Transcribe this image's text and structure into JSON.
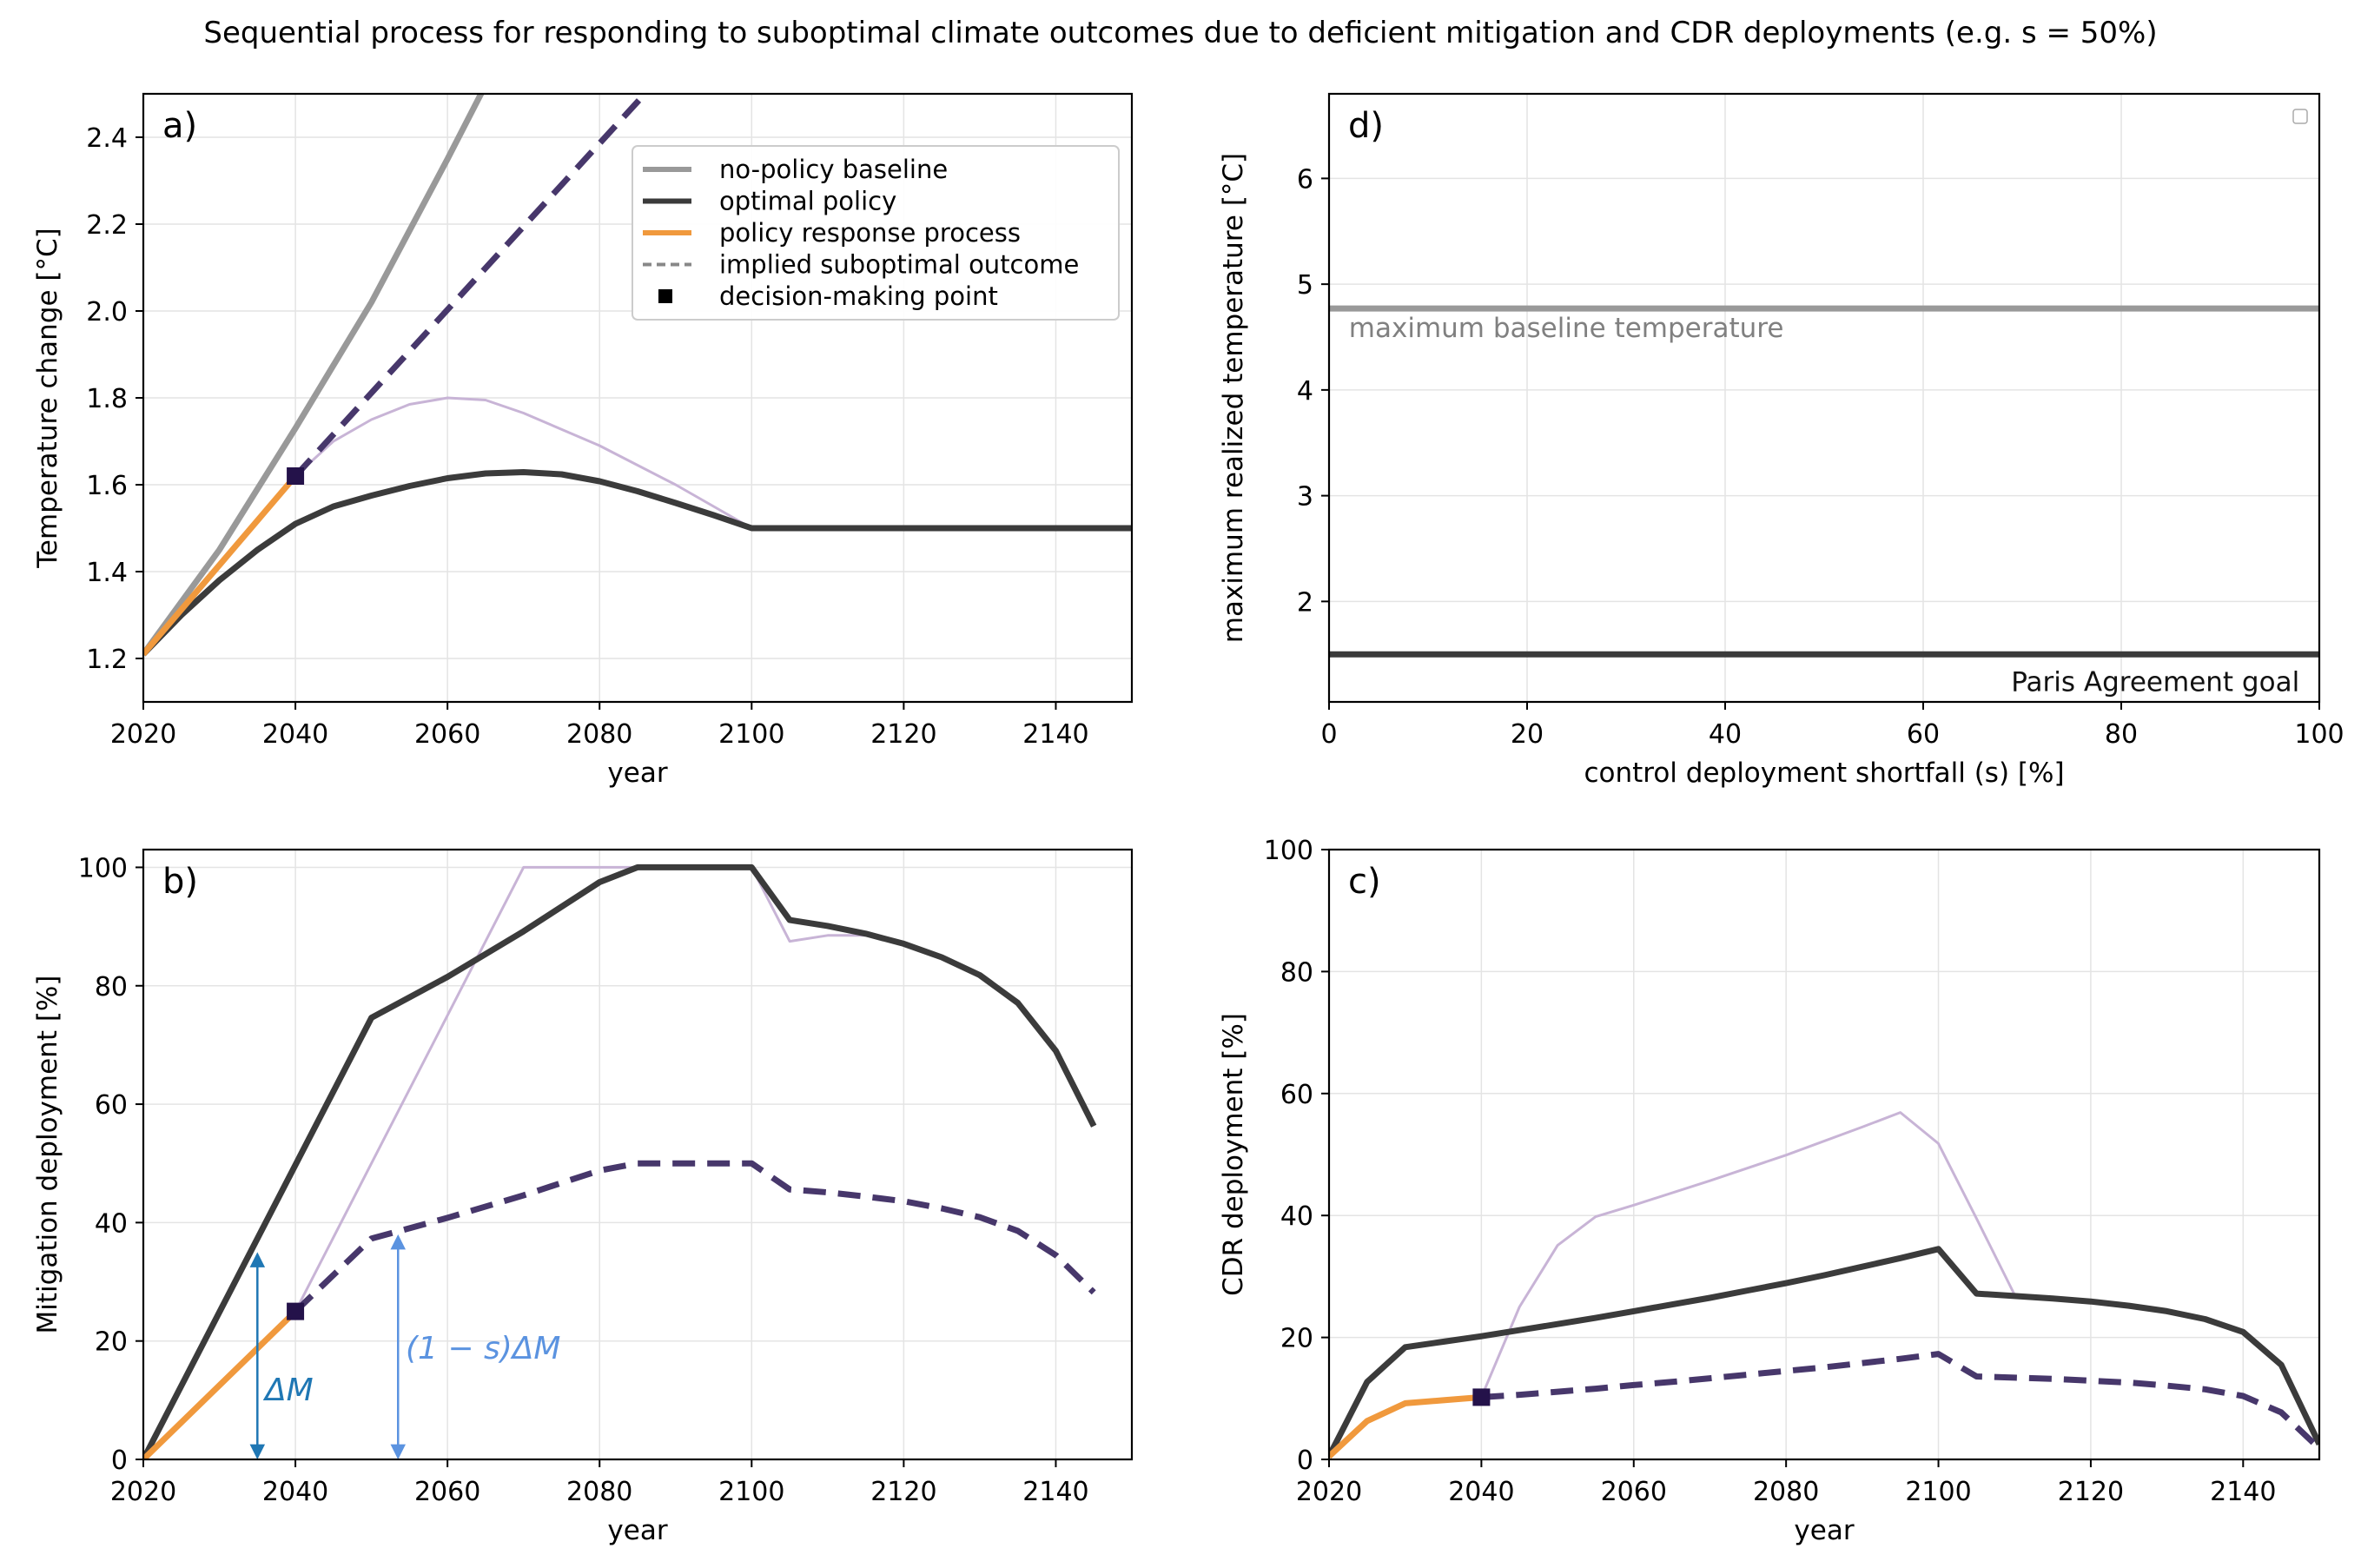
{
  "figure": {
    "title": "Sequential process for responding to suboptimal climate outcomes due to deficient mitigation and CDR deployments (e.g. s = 50%)"
  },
  "colors": {
    "baseline": "#999999",
    "optimal": "#3b3b3b",
    "response": "#f0993d",
    "suboptimal": "#47376b",
    "faint": "#c8b4d6",
    "marker": "#24124a",
    "arrow_dark": "#1f77b4",
    "arrow_light": "#5b93e0"
  },
  "chart_data": [
    {
      "id": "a",
      "type": "line",
      "panel_label": "a)",
      "xlabel": "year",
      "ylabel": "Temperature change [°C]",
      "xlim": [
        2020,
        2150
      ],
      "ylim": [
        1.1,
        2.5
      ],
      "xticks": [
        2020,
        2040,
        2060,
        2080,
        2100,
        2120,
        2140
      ],
      "yticks": [
        1.2,
        1.4,
        1.6,
        1.8,
        2.0,
        2.2,
        2.4
      ],
      "ytick_labels": [
        "1.2",
        "1.4",
        "1.6",
        "1.8",
        "2.0",
        "2.2",
        "2.4"
      ],
      "grid": true,
      "legend": {
        "position": "upper-right",
        "entries": [
          {
            "label": "no-policy baseline",
            "style": "baseline"
          },
          {
            "label": "optimal policy",
            "style": "optimal"
          },
          {
            "label": "policy response process",
            "style": "response"
          },
          {
            "label": "implied suboptimal outcome",
            "style": "dashed-gray"
          },
          {
            "label": "decision-making point",
            "style": "marker"
          }
        ]
      },
      "series": [
        {
          "style": "faint",
          "x": [
            2040,
            2045,
            2050,
            2055,
            2060,
            2065,
            2070,
            2080,
            2090,
            2100
          ],
          "y": [
            1.62,
            1.7,
            1.75,
            1.785,
            1.8,
            1.795,
            1.765,
            1.69,
            1.6,
            1.5
          ]
        },
        {
          "style": "baseline",
          "x": [
            2020,
            2030,
            2040,
            2050,
            2060,
            2065
          ],
          "y": [
            1.21,
            1.45,
            1.73,
            2.02,
            2.35,
            2.52
          ]
        },
        {
          "style": "optimal",
          "x": [
            2020,
            2025,
            2030,
            2035,
            2040,
            2045,
            2050,
            2055,
            2060,
            2065,
            2070,
            2075,
            2080,
            2085,
            2090,
            2095,
            2100,
            2110,
            2120,
            2130,
            2140,
            2150
          ],
          "y": [
            1.21,
            1.3,
            1.38,
            1.45,
            1.51,
            1.55,
            1.575,
            1.597,
            1.615,
            1.626,
            1.629,
            1.624,
            1.608,
            1.585,
            1.558,
            1.53,
            1.5,
            1.5,
            1.5,
            1.5,
            1.5,
            1.5
          ]
        },
        {
          "style": "response",
          "x": [
            2020,
            2040
          ],
          "y": [
            1.21,
            1.62
          ]
        },
        {
          "style": "suboptimal",
          "x": [
            2040,
            2087
          ],
          "y": [
            1.62,
            2.52
          ]
        }
      ],
      "markers": [
        {
          "x": 2040,
          "y": 1.62
        }
      ]
    },
    {
      "id": "d",
      "type": "line",
      "panel_label": "d)",
      "xlabel": "control deployment shortfall (s) [%]",
      "ylabel": "maximum realized temperature [°C]",
      "xlim": [
        0,
        100
      ],
      "ylim": [
        1.05,
        6.8
      ],
      "xticks": [
        0,
        20,
        40,
        60,
        80,
        100
      ],
      "yticks": [
        2,
        3,
        4,
        5,
        6
      ],
      "grid": true,
      "series": [
        {
          "style": "baseline",
          "x": [
            0,
            100
          ],
          "y": [
            4.77,
            4.77
          ]
        },
        {
          "style": "optimal",
          "x": [
            0,
            100
          ],
          "y": [
            1.5,
            1.5
          ]
        }
      ],
      "annotations": [
        {
          "text": "maximum baseline temperature",
          "x": 2,
          "y": 4.6,
          "style": "gray"
        },
        {
          "text": "Paris Agreement goal",
          "x": 98,
          "y": 1.25,
          "style": "dark-right"
        }
      ]
    },
    {
      "id": "b",
      "type": "line",
      "panel_label": "b)",
      "xlabel": "year",
      "ylabel": "Mitigation deployment [%]",
      "xlim": [
        2020,
        2150
      ],
      "ylim": [
        0,
        103
      ],
      "xticks": [
        2020,
        2040,
        2060,
        2080,
        2100,
        2120,
        2140
      ],
      "yticks": [
        0,
        20,
        40,
        60,
        80,
        100
      ],
      "grid": true,
      "series": [
        {
          "style": "faint",
          "x": [
            2040,
            2050,
            2060,
            2070,
            2080,
            2090,
            2100,
            2105,
            2110,
            2115
          ],
          "y": [
            25,
            50,
            75,
            100,
            100,
            100,
            100,
            87.5,
            88.5,
            88.5
          ]
        },
        {
          "style": "optimal",
          "x": [
            2020,
            2050,
            2060,
            2070,
            2080,
            2085,
            2090,
            2095,
            2100,
            2105,
            2110,
            2115,
            2120,
            2125,
            2130,
            2135,
            2140,
            2145
          ],
          "y": [
            0,
            74.6,
            81.5,
            89.2,
            97.5,
            100,
            100,
            100,
            100,
            91.1,
            90.1,
            88.8,
            87.1,
            84.8,
            81.8,
            77.1,
            69.0,
            56.3
          ]
        },
        {
          "style": "response",
          "x": [
            2020,
            2040
          ],
          "y": [
            0,
            25
          ]
        },
        {
          "style": "suboptimal",
          "x": [
            2040,
            2050,
            2060,
            2070,
            2080,
            2085,
            2090,
            2095,
            2100,
            2105,
            2110,
            2115,
            2120,
            2125,
            2130,
            2135,
            2140,
            2145
          ],
          "y": [
            25,
            37.3,
            40.8,
            44.6,
            48.8,
            50,
            50,
            50,
            50,
            45.6,
            45.1,
            44.4,
            43.6,
            42.4,
            40.9,
            38.6,
            34.5,
            28.2
          ]
        }
      ],
      "markers": [
        {
          "x": 2040,
          "y": 25
        }
      ],
      "arrows": [
        {
          "x": 2035,
          "y0": 0.5,
          "y1": 34.5,
          "label": "ΔM",
          "style": "arrow_dark",
          "label_x": 2036,
          "label_y": 10
        },
        {
          "x": 2053.5,
          "y0": 0.5,
          "y1": 37.5,
          "label": "(1 − s)ΔM",
          "style": "arrow_light",
          "label_x": 2054.5,
          "label_y": 17
        }
      ]
    },
    {
      "id": "c",
      "type": "line",
      "panel_label": "c)",
      "xlabel": "year",
      "ylabel": "CDR deployment [%]",
      "xlim": [
        2020,
        2150
      ],
      "ylim": [
        0,
        100
      ],
      "xticks": [
        2020,
        2040,
        2060,
        2080,
        2100,
        2120,
        2140
      ],
      "yticks": [
        0,
        20,
        40,
        60,
        80,
        100
      ],
      "grid": true,
      "series": [
        {
          "style": "faint",
          "x": [
            2040,
            2045,
            2050,
            2055,
            2060,
            2070,
            2080,
            2090,
            2095,
            2100,
            2105,
            2110
          ],
          "y": [
            10.2,
            25,
            35.1,
            39.8,
            41.7,
            45.7,
            49.9,
            54.5,
            56.9,
            51.8,
            39.5,
            27
          ]
        },
        {
          "style": "optimal",
          "x": [
            2020,
            2025,
            2030,
            2035,
            2040,
            2045,
            2050,
            2055,
            2060,
            2065,
            2070,
            2075,
            2080,
            2085,
            2090,
            2095,
            2100,
            2105,
            2110,
            2115,
            2120,
            2125,
            2130,
            2135,
            2140,
            2145,
            2150
          ],
          "y": [
            0.5,
            12.7,
            18.4,
            19.3,
            20.2,
            21.2,
            22.2,
            23.2,
            24.3,
            25.4,
            26.5,
            27.7,
            28.9,
            30.2,
            31.6,
            33.0,
            34.5,
            27.2,
            26.8,
            26.4,
            25.9,
            25.2,
            24.3,
            23.0,
            20.9,
            15.5,
            2.5
          ]
        },
        {
          "style": "response",
          "x": [
            2020,
            2025,
            2030,
            2035,
            2040
          ],
          "y": [
            0.5,
            6.3,
            9.2,
            9.7,
            10.2
          ]
        },
        {
          "style": "suboptimal",
          "x": [
            2040,
            2045,
            2050,
            2055,
            2060,
            2065,
            2070,
            2075,
            2080,
            2085,
            2090,
            2095,
            2100,
            2105,
            2110,
            2115,
            2120,
            2125,
            2130,
            2135,
            2140,
            2145,
            2150
          ],
          "y": [
            10.2,
            10.6,
            11.1,
            11.6,
            12.2,
            12.7,
            13.3,
            13.9,
            14.5,
            15.1,
            15.8,
            16.5,
            17.3,
            13.6,
            13.4,
            13.2,
            12.9,
            12.6,
            12.1,
            11.5,
            10.4,
            7.7,
            1.8
          ]
        }
      ],
      "markers": [
        {
          "x": 2040,
          "y": 10.2
        }
      ]
    }
  ]
}
